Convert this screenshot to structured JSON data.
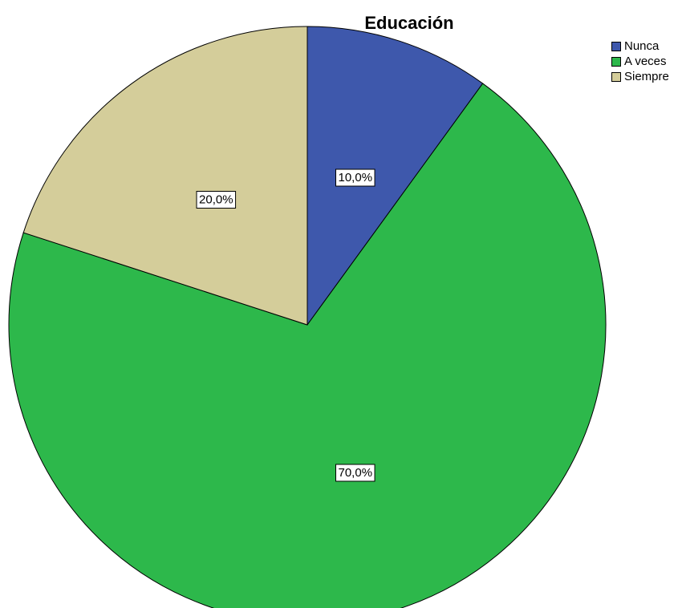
{
  "chart_data": {
    "type": "pie",
    "title": "Educación",
    "categories": [
      "Nunca",
      "A veces",
      "Siempre"
    ],
    "values": [
      10.0,
      70.0,
      20.0
    ],
    "data_labels": [
      "10,0%",
      "70,0%",
      "20,0%"
    ],
    "colors": [
      "#3e58ac",
      "#2db84b",
      "#d4cd9a"
    ],
    "start_angle": "12 o'clock",
    "direction": "clockwise",
    "legend_position": "top-right"
  }
}
